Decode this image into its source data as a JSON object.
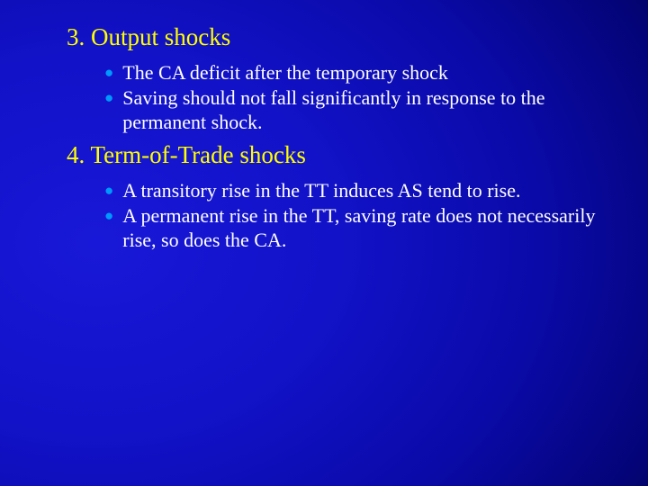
{
  "background": {
    "gradient_center": "#1818d8",
    "gradient_mid": "#0a0aa8",
    "gradient_outer": "#000020"
  },
  "title_color": "#ffff00",
  "text_color": "#ffffff",
  "bullet_color": "#0099ff",
  "title_fontsize": 27,
  "text_fontsize": 22,
  "sections": [
    {
      "title": "3. Output shocks",
      "bullets": [
        "The CA deficit after the temporary shock",
        "Saving should not fall significantly in response to the permanent shock."
      ]
    },
    {
      "title": "4. Term-of-Trade shocks",
      "bullets": [
        "A transitory rise in the TT induces AS tend to rise.",
        "A permanent rise in the TT, saving rate does not necessarily rise, so does the CA."
      ]
    }
  ]
}
